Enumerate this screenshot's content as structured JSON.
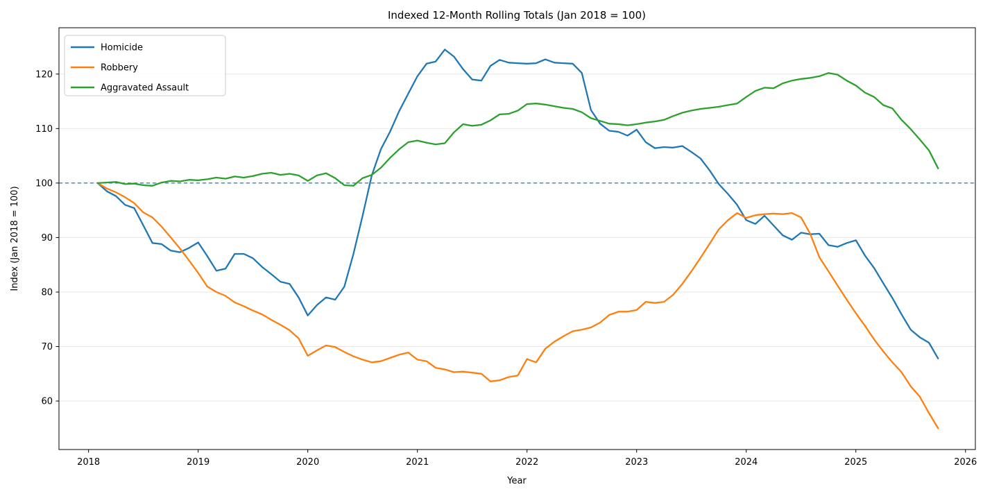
{
  "figure": {
    "background": "#ffffff"
  },
  "chart_data": {
    "type": "line",
    "title": "Indexed 12-Month Rolling Totals (Jan 2018 = 100)",
    "xlabel": "Year",
    "ylabel": "Index (Jan 2018 = 100)",
    "grid": "horizontal-only",
    "grid_color": "#e6e6e6",
    "axis_color": "#000000",
    "legend_position": "upper-left",
    "x_ticks": [
      2018,
      2019,
      2020,
      2021,
      2022,
      2023,
      2024,
      2025,
      2026
    ],
    "y_ticks": [
      60,
      70,
      80,
      90,
      100,
      110,
      120
    ],
    "xlim": [
      2017.73,
      2026.09
    ],
    "ylim": [
      51.1,
      128.5
    ],
    "x_start": 2018.0833,
    "x_step": 0.0833333,
    "reference_line": {
      "y": 100,
      "color": "#1f77b4",
      "style": "dashed"
    },
    "series": [
      {
        "name": "Homicide",
        "color": "#1f77b4",
        "values": [
          100.0,
          98.5,
          97.6,
          96.0,
          95.4,
          92.2,
          89.0,
          88.8,
          87.6,
          87.3,
          88.1,
          89.1,
          86.6,
          83.9,
          84.3,
          87.0,
          87.0,
          86.2,
          84.6,
          83.3,
          81.9,
          81.5,
          79.0,
          75.7,
          77.6,
          79.0,
          78.6,
          81.0,
          87.0,
          94.0,
          101.4,
          106.2,
          109.4,
          113.2,
          116.4,
          119.6,
          121.9,
          122.3,
          124.5,
          123.2,
          120.9,
          119.0,
          118.8,
          121.5,
          122.6,
          122.1,
          122.0,
          121.9,
          122.0,
          122.7,
          122.1,
          122.0,
          121.9,
          120.2,
          113.4,
          110.9,
          109.6,
          109.4,
          108.7,
          109.8,
          107.5,
          106.4,
          106.6,
          106.5,
          106.8,
          105.7,
          104.5,
          102.3,
          99.8,
          98.0,
          96.0,
          93.2,
          92.5,
          94.0,
          92.2,
          90.4,
          89.6,
          90.9,
          90.6,
          90.7,
          88.6,
          88.3,
          89.0,
          89.5,
          86.7,
          84.4,
          81.6,
          78.9,
          75.9,
          73.1,
          71.7,
          70.7,
          67.8
        ]
      },
      {
        "name": "Robbery",
        "color": "#ff7f0e",
        "values": [
          100.0,
          99.0,
          98.3,
          97.4,
          96.3,
          94.6,
          93.7,
          92.0,
          90.0,
          88.0,
          85.8,
          83.5,
          81.0,
          80.0,
          79.3,
          78.1,
          77.4,
          76.6,
          75.9,
          74.9,
          74.0,
          73.0,
          71.5,
          68.3,
          69.3,
          70.2,
          69.9,
          69.0,
          68.2,
          67.6,
          67.1,
          67.3,
          67.9,
          68.5,
          68.9,
          67.6,
          67.3,
          66.1,
          65.8,
          65.3,
          65.4,
          65.2,
          65.0,
          63.6,
          63.8,
          64.4,
          64.7,
          67.7,
          67.1,
          69.6,
          70.9,
          71.9,
          72.8,
          73.1,
          73.5,
          74.4,
          75.8,
          76.4,
          76.4,
          76.7,
          78.2,
          78.0,
          78.2,
          79.5,
          81.5,
          83.8,
          86.3,
          88.9,
          91.5,
          93.2,
          94.5,
          93.6,
          94.1,
          94.3,
          94.4,
          94.3,
          94.5,
          93.7,
          90.7,
          86.4,
          83.8,
          81.2,
          78.6,
          76.1,
          73.8,
          71.3,
          69.1,
          67.1,
          65.3,
          62.7,
          60.8,
          57.8,
          55.0
        ]
      },
      {
        "name": "Aggravated Assault",
        "color": "#2ca02c",
        "values": [
          100.0,
          100.1,
          100.2,
          99.8,
          99.9,
          99.6,
          99.5,
          100.1,
          100.4,
          100.3,
          100.6,
          100.5,
          100.7,
          101.0,
          100.8,
          101.2,
          101.0,
          101.3,
          101.7,
          101.9,
          101.5,
          101.7,
          101.4,
          100.4,
          101.4,
          101.8,
          100.9,
          99.6,
          99.5,
          100.9,
          101.5,
          102.8,
          104.6,
          106.2,
          107.5,
          107.8,
          107.4,
          107.1,
          107.3,
          109.3,
          110.8,
          110.5,
          110.7,
          111.5,
          112.6,
          112.7,
          113.3,
          114.5,
          114.6,
          114.4,
          114.1,
          113.8,
          113.6,
          113.0,
          111.9,
          111.4,
          110.9,
          110.8,
          110.6,
          110.8,
          111.1,
          111.3,
          111.6,
          112.3,
          112.9,
          113.3,
          113.6,
          113.8,
          114.0,
          114.3,
          114.6,
          115.8,
          116.9,
          117.5,
          117.4,
          118.3,
          118.8,
          119.1,
          119.3,
          119.6,
          120.2,
          119.9,
          118.8,
          117.9,
          116.6,
          115.8,
          114.3,
          113.7,
          111.6,
          109.9,
          108.0,
          106.0,
          102.7
        ]
      }
    ]
  }
}
